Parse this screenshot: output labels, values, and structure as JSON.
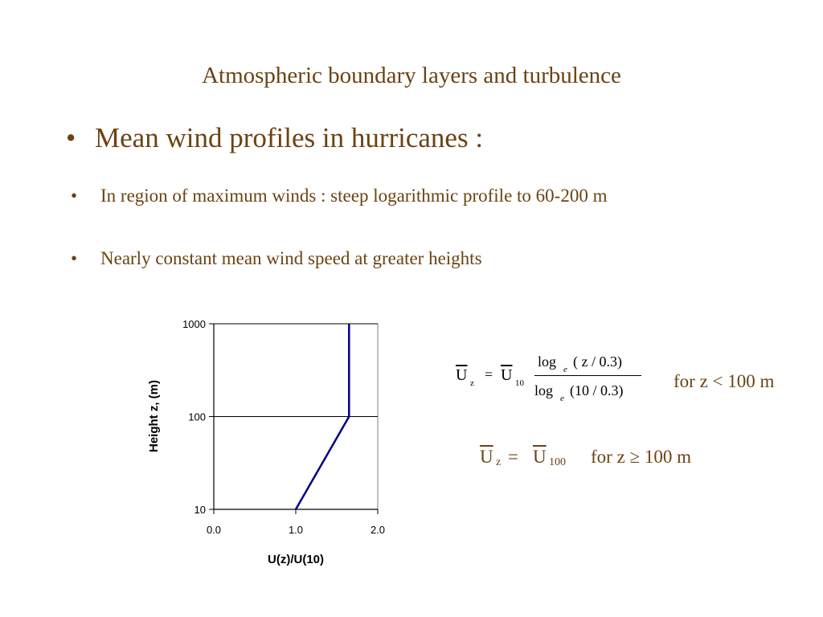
{
  "slide": {
    "title": "Atmospheric boundary layers and turbulence",
    "main_bullet": "Mean wind profiles in hurricanes :",
    "sub_bullets": [
      "In region of maximum winds :  steep logarithmic profile to 60-200 m",
      "Nearly constant mean wind speed at greater heights"
    ],
    "bullet_symbol": "•"
  },
  "equations": {
    "eq1": {
      "lhs": "U",
      "lhs_sub": "z",
      "equals": "=",
      "rhs": "U",
      "rhs_sub": "10",
      "numerator": "log",
      "num_sub": "e",
      "num_arg": "( z / 0.3)",
      "denominator": "log",
      "den_sub": "e",
      "den_arg": "(10 / 0.3)",
      "condition": "for z < 100 m"
    },
    "eq2": {
      "lhs": "U",
      "lhs_sub": "z",
      "equals": "=",
      "rhs": "U",
      "rhs_sub": "100",
      "condition": "for z ≥ 100 m"
    }
  },
  "colors": {
    "text": "#6b4312",
    "line": "#000080",
    "axis": "#000000"
  },
  "chart_data": {
    "type": "line",
    "title": "",
    "xlabel": "U(z)/U(10)",
    "ylabel": "Height z, (m)",
    "xlim": [
      0.0,
      2.0
    ],
    "ylim": [
      10,
      1000
    ],
    "yscale": "log",
    "x_ticks": [
      "0.0",
      "1.0",
      "2.0"
    ],
    "y_ticks": [
      "10",
      "100",
      "1000"
    ],
    "grid": "horizontal major lines",
    "series": [
      {
        "x": [
          1.0,
          1.65,
          1.65
        ],
        "y": [
          10,
          100,
          1000
        ]
      }
    ]
  }
}
